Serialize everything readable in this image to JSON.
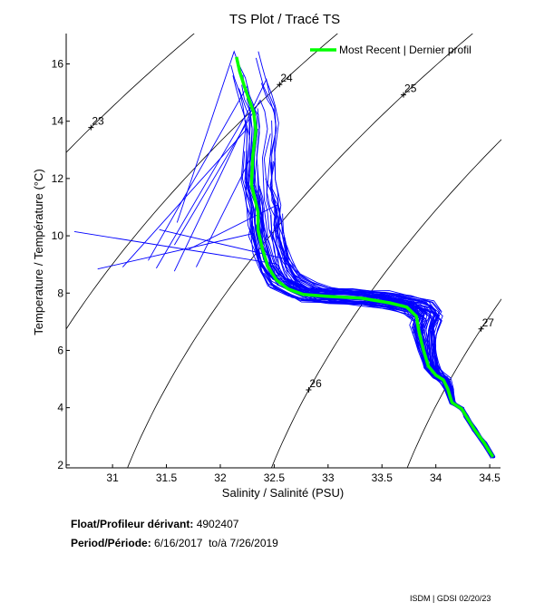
{
  "chart_data": {
    "type": "line",
    "title": "TS Plot / Tracé TS",
    "xlabel": "Salinity / Salinité (PSU)",
    "ylabel": "Temperature / Température (°C)",
    "xlim": [
      30.57,
      34.6
    ],
    "ylim": [
      1.9,
      17.06
    ],
    "xticks": [
      31,
      31.5,
      32,
      32.5,
      33,
      33.5,
      34,
      34.5
    ],
    "xtick_labels": [
      "31",
      "31.5",
      "32",
      "32.5",
      "33",
      "33.5",
      "34",
      "34.5"
    ],
    "yticks": [
      2,
      4,
      6,
      8,
      10,
      12,
      14,
      16
    ],
    "ytick_labels": [
      "2",
      "4",
      "6",
      "8",
      "10",
      "12",
      "14",
      "16"
    ],
    "grid": false,
    "legend": {
      "position": "top-right",
      "entries": [
        {
          "label": "Most Recent | Dernier profil",
          "color": "#00ff00"
        }
      ]
    },
    "density_contours": [
      {
        "label": "23",
        "label_at": [
          30.8,
          13.78
        ]
      },
      {
        "label": "24",
        "label_at": [
          32.55,
          15.28
        ]
      },
      {
        "label": "25",
        "label_at": [
          33.7,
          14.92
        ]
      },
      {
        "label": "26",
        "label_at": [
          32.82,
          4.62
        ]
      },
      {
        "label": "27",
        "label_at": [
          34.42,
          6.75
        ]
      }
    ],
    "series": [
      {
        "name": "Most Recent | Dernier profil",
        "color": "#00ff00",
        "points": [
          [
            32.15,
            16.24
          ],
          [
            32.18,
            15.73
          ],
          [
            32.22,
            15.26
          ],
          [
            32.27,
            14.72
          ],
          [
            32.31,
            14.31
          ],
          [
            32.33,
            13.68
          ],
          [
            32.3,
            12.73
          ],
          [
            32.29,
            11.78
          ],
          [
            32.32,
            11.3
          ],
          [
            32.35,
            10.83
          ],
          [
            32.35,
            10.2
          ],
          [
            32.39,
            9.56
          ],
          [
            32.44,
            8.93
          ],
          [
            32.52,
            8.46
          ],
          [
            32.63,
            8.14
          ],
          [
            32.77,
            7.95
          ],
          [
            32.98,
            7.89
          ],
          [
            33.31,
            7.82
          ],
          [
            33.57,
            7.66
          ],
          [
            33.73,
            7.51
          ],
          [
            33.82,
            7.19
          ],
          [
            33.84,
            6.72
          ],
          [
            33.88,
            6.08
          ],
          [
            33.93,
            5.45
          ],
          [
            34.0,
            5.13
          ],
          [
            34.07,
            4.97
          ],
          [
            34.11,
            4.66
          ],
          [
            34.15,
            4.18
          ],
          [
            34.24,
            3.96
          ],
          [
            34.28,
            3.71
          ],
          [
            34.36,
            3.23
          ],
          [
            34.45,
            2.76
          ],
          [
            34.53,
            2.28
          ]
        ]
      },
      {
        "name": "Historical profiles",
        "color": "#0000ff",
        "note": "dense envelope of ~50 earlier profiles following the same shape, spread ±0.3 PSU in the upper layer; several surface profiles extend west to S≈30.6 near T 8–10.5 °C"
      }
    ]
  },
  "info": {
    "float_label": "Float/Profileur dérivant:",
    "float_value": "4902407",
    "period_label": "Period/Période:",
    "period_start": "6/16/2017",
    "period_sep": "to/à",
    "period_end": "7/26/2019"
  },
  "footer": "ISDM | GDSI  02/20/23",
  "colors": {
    "recent": "#00ff00",
    "history": "#0000ff",
    "contour": "#000000"
  }
}
